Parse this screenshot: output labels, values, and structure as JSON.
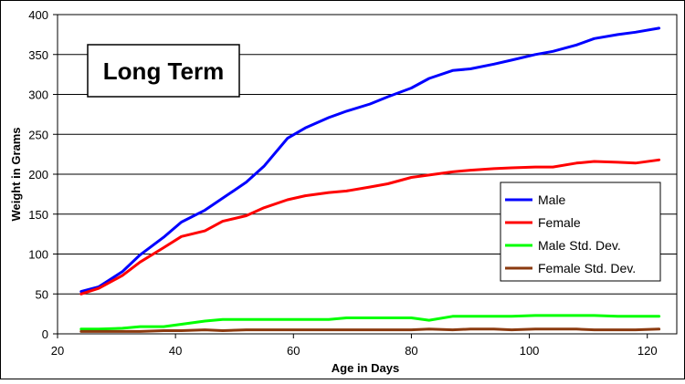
{
  "chart_data": {
    "type": "line",
    "title": "Long Term",
    "xlabel": "Age in Days",
    "ylabel": "Weight in Grams",
    "xlim": [
      20,
      125
    ],
    "ylim": [
      0,
      400
    ],
    "xticks": [
      20,
      40,
      60,
      80,
      100,
      120
    ],
    "yticks": [
      0,
      50,
      100,
      150,
      200,
      250,
      300,
      350,
      400
    ],
    "grid": "horizontal",
    "legend_position": "bottom-right",
    "series": [
      {
        "name": "Male",
        "color": "#0000ff",
        "x": [
          24,
          27,
          31,
          34,
          38,
          41,
          45,
          48,
          52,
          55,
          59,
          62,
          66,
          69,
          73,
          76,
          80,
          83,
          87,
          90,
          94,
          97,
          101,
          104,
          108,
          111,
          115,
          118,
          122
        ],
        "y": [
          53,
          59,
          78,
          99,
          121,
          140,
          155,
          170,
          190,
          210,
          245,
          258,
          271,
          279,
          288,
          297,
          308,
          320,
          330,
          332,
          338,
          343,
          350,
          354,
          362,
          370,
          375,
          378,
          383
        ]
      },
      {
        "name": "Female",
        "color": "#ff0000",
        "x": [
          24,
          27,
          31,
          34,
          38,
          41,
          45,
          48,
          52,
          55,
          59,
          62,
          66,
          69,
          73,
          76,
          80,
          83,
          87,
          90,
          94,
          97,
          101,
          104,
          108,
          111,
          115,
          118,
          122
        ],
        "y": [
          50,
          57,
          73,
          90,
          108,
          122,
          129,
          141,
          148,
          158,
          168,
          173,
          177,
          179,
          184,
          188,
          196,
          199,
          203,
          205,
          207,
          208,
          209,
          209,
          214,
          216,
          215,
          214,
          218
        ]
      },
      {
        "name": "Male Std. Dev.",
        "color": "#00ff00",
        "x": [
          24,
          27,
          31,
          34,
          38,
          41,
          45,
          48,
          52,
          55,
          59,
          62,
          66,
          69,
          73,
          76,
          80,
          83,
          87,
          90,
          94,
          97,
          101,
          104,
          108,
          111,
          115,
          118,
          122
        ],
        "y": [
          6,
          6,
          7,
          9,
          9,
          12,
          16,
          18,
          18,
          18,
          18,
          18,
          18,
          20,
          20,
          20,
          20,
          17,
          22,
          22,
          22,
          22,
          23,
          23,
          23,
          23,
          22,
          22,
          22
        ]
      },
      {
        "name": "Female Std. Dev.",
        "color": "#8b3a0f",
        "x": [
          24,
          27,
          31,
          34,
          38,
          41,
          45,
          48,
          52,
          55,
          59,
          62,
          66,
          69,
          73,
          76,
          80,
          83,
          87,
          90,
          94,
          97,
          101,
          104,
          108,
          111,
          115,
          118,
          122
        ],
        "y": [
          3,
          3,
          3,
          3,
          4,
          4,
          5,
          4,
          5,
          5,
          5,
          5,
          5,
          5,
          5,
          5,
          5,
          6,
          5,
          6,
          6,
          5,
          6,
          6,
          6,
          5,
          5,
          5,
          6
        ]
      }
    ]
  }
}
